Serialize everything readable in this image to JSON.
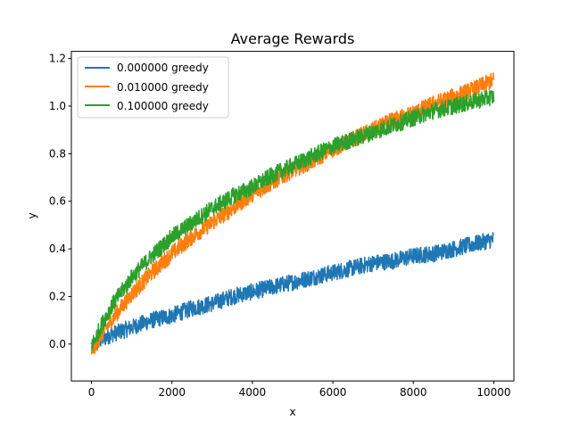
{
  "chart_data": {
    "type": "line",
    "title": "Average Rewards",
    "xlabel": "x",
    "ylabel": "y",
    "xlim": [
      -500,
      10500
    ],
    "ylim": [
      -0.155,
      1.23
    ],
    "x_ticks": [
      0,
      2000,
      4000,
      6000,
      8000,
      10000
    ],
    "x_tick_labels": [
      "0",
      "2000",
      "4000",
      "6000",
      "8000",
      "10000"
    ],
    "y_ticks": [
      0.0,
      0.2,
      0.4,
      0.6,
      0.8,
      1.0,
      1.2
    ],
    "y_tick_labels": [
      "0.0",
      "0.2",
      "0.4",
      "0.6",
      "0.8",
      "1.0",
      "1.2"
    ],
    "grid": false,
    "legend_position": "top-left",
    "series": [
      {
        "name": "0.000000 greedy",
        "color": "#1f77b4",
        "x": [
          0,
          250,
          500,
          1000,
          1500,
          2000,
          2500,
          3000,
          3500,
          4000,
          4500,
          5000,
          5500,
          6000,
          6500,
          7000,
          7500,
          8000,
          8500,
          9000,
          9500,
          10000
        ],
        "y": [
          -0.02,
          0.02,
          0.04,
          0.07,
          0.1,
          0.12,
          0.15,
          0.17,
          0.2,
          0.22,
          0.24,
          0.26,
          0.28,
          0.3,
          0.32,
          0.34,
          0.35,
          0.37,
          0.38,
          0.4,
          0.42,
          0.44
        ],
        "spread": 0.035
      },
      {
        "name": "0.010000 greedy",
        "color": "#ff7f0e",
        "x": [
          0,
          250,
          500,
          1000,
          1500,
          2000,
          2500,
          3000,
          3500,
          4000,
          4500,
          5000,
          5500,
          6000,
          6500,
          7000,
          7500,
          8000,
          8500,
          9000,
          9500,
          10000
        ],
        "y": [
          -0.03,
          0.04,
          0.1,
          0.21,
          0.3,
          0.38,
          0.45,
          0.51,
          0.57,
          0.63,
          0.68,
          0.73,
          0.77,
          0.82,
          0.86,
          0.9,
          0.94,
          0.97,
          1.01,
          1.04,
          1.07,
          1.11
        ],
        "spread": 0.035
      },
      {
        "name": "0.100000 greedy",
        "color": "#2ca02c",
        "x": [
          0,
          250,
          500,
          1000,
          1500,
          2000,
          2500,
          3000,
          3500,
          4000,
          4500,
          5000,
          5500,
          6000,
          6500,
          7000,
          7500,
          8000,
          8500,
          9000,
          9500,
          10000
        ],
        "y": [
          -0.01,
          0.08,
          0.16,
          0.28,
          0.37,
          0.45,
          0.51,
          0.57,
          0.62,
          0.66,
          0.71,
          0.75,
          0.79,
          0.83,
          0.86,
          0.89,
          0.92,
          0.95,
          0.98,
          1.0,
          1.02,
          1.04
        ],
        "spread": 0.035
      }
    ]
  }
}
